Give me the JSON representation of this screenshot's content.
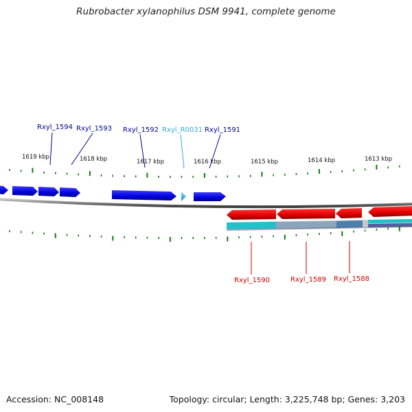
{
  "title": "Rubrobacter xylanophilus DSM 9941, complete genome",
  "footer": {
    "accession": "Accession: NC_008148",
    "summary": "Topology: circular; Length: 3,225,748 bp; Genes: 3,203"
  },
  "colors": {
    "forward_gene": "#0a0ae6",
    "reverse_gene": "#ee0000",
    "rna_gene": "#22bbee",
    "ticks": "#117711",
    "forward_label": "#00008b",
    "rna_label": "#33aacc",
    "reverse_label": "#cc0000",
    "backbone": "#909090",
    "gc_track": "#22b8c0"
  },
  "scale": {
    "unit": "kbp",
    "labels": [
      "1619 kbp",
      "1618 kbp",
      "1617 kbp",
      "1616 kbp",
      "1615 kbp",
      "1614 kbp",
      "1613 kbp"
    ]
  },
  "genes": {
    "forward": [
      "Rxyl_1594",
      "Rxyl_1593",
      "Rxyl_1592",
      "Rxyl_R0031",
      "Rxyl_1591"
    ],
    "reverse": [
      "Rxyl_1590",
      "Rxyl_1589",
      "Rxyl_1588"
    ]
  }
}
